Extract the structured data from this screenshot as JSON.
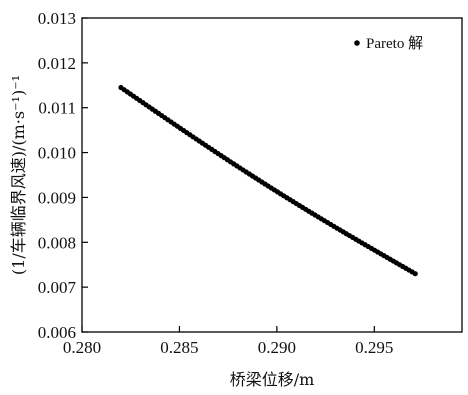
{
  "chart_data": {
    "type": "scatter",
    "title": "",
    "xlabel": "桥梁位移/m",
    "ylabel": "(1/车辆临界风速)/(m·s⁻¹)⁻¹",
    "xlim": [
      0.28,
      0.2995
    ],
    "ylim": [
      0.006,
      0.013
    ],
    "xticks": [
      "0.280",
      "0.285",
      "0.290",
      "0.295"
    ],
    "xtick_values": [
      0.28,
      0.285,
      0.29,
      0.295
    ],
    "yticks": [
      "0.006",
      "0.007",
      "0.008",
      "0.009",
      "0.010",
      "0.011",
      "0.012",
      "0.013"
    ],
    "ytick_values": [
      0.006,
      0.007,
      0.008,
      0.009,
      0.01,
      0.011,
      0.012,
      0.013
    ],
    "grid": false,
    "legend_position": "top-right",
    "marker_color": "#000000",
    "series": [
      {
        "name": "Pareto 解",
        "x_start": 0.282,
        "y_start": 0.01145,
        "x_end": 0.2971,
        "y_end": 0.0073,
        "points": 95
      }
    ]
  }
}
